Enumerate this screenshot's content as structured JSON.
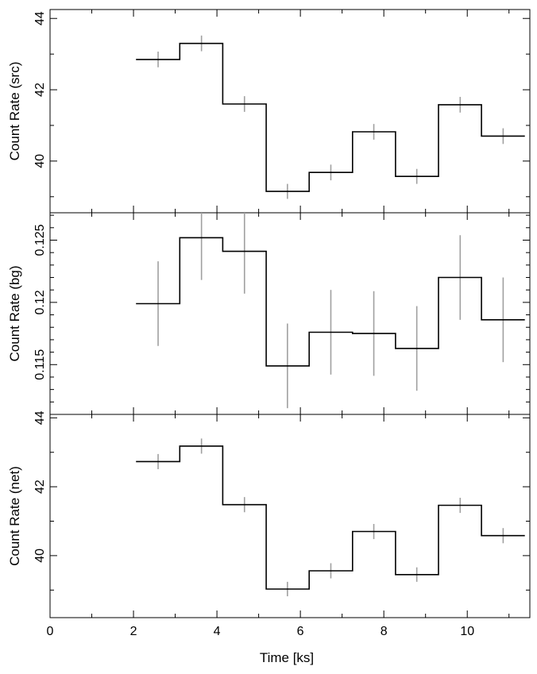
{
  "chart_data": {
    "type": "line",
    "step": true,
    "shared_x": {
      "label": "Time [ks]",
      "range": [
        0,
        11.5
      ],
      "major_ticks": [
        0,
        2,
        4,
        6,
        8,
        10
      ],
      "major_tick_labels": [
        "0",
        "2",
        "4",
        "6",
        "8",
        "10"
      ],
      "minor_ticks": [
        1,
        3,
        5,
        7,
        9,
        11
      ]
    },
    "panels": [
      {
        "ylabel": "Count Rate (src)",
        "ylim": [
          38.55,
          44.25
        ],
        "major_ticks": [
          40,
          42,
          44
        ],
        "major_tick_labels": [
          "40",
          "42",
          "44"
        ],
        "minor_ticks": [
          39,
          41,
          43
        ],
        "series": [
          {
            "bin_edges": [
              2.06,
              3.11,
              4.14,
              5.18,
              6.21,
              7.25,
              8.28,
              9.31,
              10.34,
              11.38
            ],
            "x": [
              2.59,
              3.63,
              4.66,
              5.69,
              6.73,
              7.76,
              8.79,
              9.83,
              10.86
            ],
            "values": [
              42.85,
              43.3,
              41.6,
              39.15,
              39.68,
              40.82,
              39.57,
              41.58,
              40.7
            ],
            "errors": [
              0.22,
              0.22,
              0.22,
              0.21,
              0.22,
              0.22,
              0.21,
              0.22,
              0.22
            ]
          }
        ]
      },
      {
        "ylabel": "Count Rate (bg)",
        "ylim": [
          0.111,
          0.1272
        ],
        "major_ticks": [
          0.115,
          0.12,
          0.125
        ],
        "major_tick_labels": [
          "0.115",
          "0.12",
          "0.125"
        ],
        "minor_ticks": [
          0.112,
          0.113,
          0.114,
          0.116,
          0.117,
          0.118,
          0.119,
          0.121,
          0.122,
          0.123,
          0.124,
          0.126,
          0.127
        ],
        "series": [
          {
            "bin_edges": [
              2.06,
              3.11,
              4.14,
              5.18,
              6.21,
              7.25,
              8.28,
              9.31,
              10.34,
              11.38
            ],
            "x": [
              2.59,
              3.63,
              4.66,
              5.69,
              6.73,
              7.76,
              8.79,
              9.83,
              10.86
            ],
            "values": [
              0.1199,
              0.1252,
              0.1241,
              0.1149,
              0.1176,
              0.1175,
              0.1163,
              0.122,
              0.1186
            ],
            "errors": [
              0.0034,
              0.0034,
              0.0034,
              0.0034,
              0.0034,
              0.0034,
              0.0034,
              0.0034,
              0.0034
            ]
          }
        ]
      },
      {
        "ylabel": "Count Rate (net)",
        "ylim": [
          38.2,
          44.1
        ],
        "major_ticks": [
          40,
          42,
          44
        ],
        "major_tick_labels": [
          "40",
          "42",
          "44"
        ],
        "minor_ticks": [
          39,
          41,
          43
        ],
        "series": [
          {
            "bin_edges": [
              2.06,
              3.11,
              4.14,
              5.18,
              6.21,
              7.25,
              8.28,
              9.31,
              10.34,
              11.38
            ],
            "x": [
              2.59,
              3.63,
              4.66,
              5.69,
              6.73,
              7.76,
              8.79,
              9.83,
              10.86
            ],
            "values": [
              42.73,
              43.18,
              41.48,
              39.03,
              39.56,
              40.7,
              39.45,
              41.46,
              40.58
            ],
            "errors": [
              0.22,
              0.22,
              0.22,
              0.21,
              0.22,
              0.22,
              0.21,
              0.22,
              0.22
            ]
          }
        ]
      }
    ],
    "colors": {
      "step_line": "#000000",
      "error_bar": "#a0a0a0",
      "axes": "#000000"
    },
    "grid": false,
    "legend": "none"
  }
}
